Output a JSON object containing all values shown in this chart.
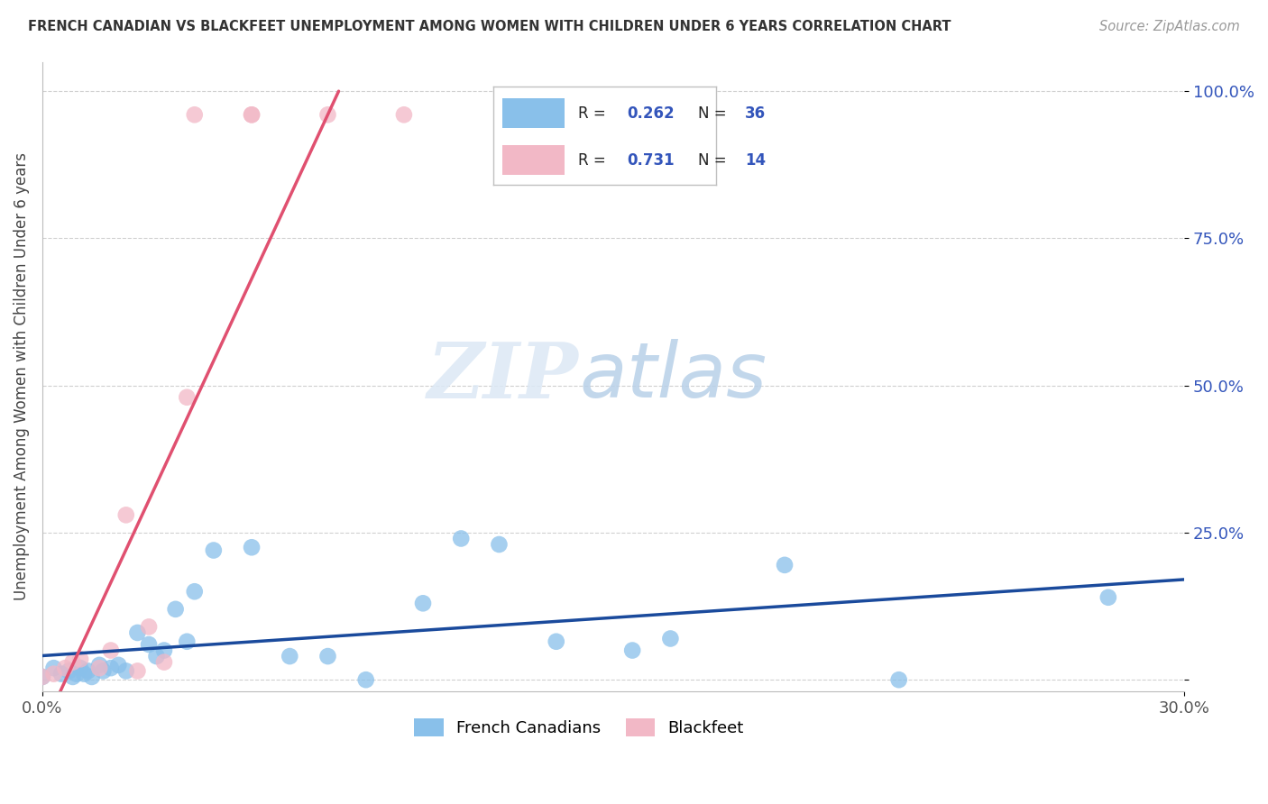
{
  "title": "FRENCH CANADIAN VS BLACKFEET UNEMPLOYMENT AMONG WOMEN WITH CHILDREN UNDER 6 YEARS CORRELATION CHART",
  "source": "Source: ZipAtlas.com",
  "ylabel": "Unemployment Among Women with Children Under 6 years",
  "xlim": [
    0.0,
    0.3
  ],
  "ylim": [
    -0.02,
    1.05
  ],
  "xtick_positions": [
    0.0,
    0.3
  ],
  "xtick_labels": [
    "0.0%",
    "30.0%"
  ],
  "ytick_positions": [
    0.0,
    0.25,
    0.5,
    0.75,
    1.0
  ],
  "ytick_labels": [
    "",
    "25.0%",
    "50.0%",
    "75.0%",
    "100.0%"
  ],
  "french_canadians": {
    "x": [
      0.0,
      0.003,
      0.005,
      0.007,
      0.008,
      0.009,
      0.01,
      0.011,
      0.012,
      0.013,
      0.015,
      0.016,
      0.018,
      0.02,
      0.022,
      0.025,
      0.028,
      0.03,
      0.032,
      0.035,
      0.038,
      0.04,
      0.045,
      0.055,
      0.065,
      0.075,
      0.085,
      0.1,
      0.11,
      0.12,
      0.135,
      0.155,
      0.165,
      0.195,
      0.225,
      0.28
    ],
    "y": [
      0.005,
      0.02,
      0.01,
      0.015,
      0.005,
      0.01,
      0.02,
      0.01,
      0.015,
      0.005,
      0.025,
      0.015,
      0.02,
      0.025,
      0.015,
      0.08,
      0.06,
      0.04,
      0.05,
      0.12,
      0.065,
      0.15,
      0.22,
      0.225,
      0.04,
      0.04,
      0.0,
      0.13,
      0.24,
      0.23,
      0.065,
      0.05,
      0.07,
      0.195,
      0.0,
      0.14
    ],
    "color": "#89c0ea",
    "trend_color": "#1a4a9c",
    "R": 0.262,
    "N": 36
  },
  "blackfeet": {
    "x": [
      0.0,
      0.003,
      0.006,
      0.008,
      0.01,
      0.015,
      0.018,
      0.022,
      0.025,
      0.028,
      0.032,
      0.038,
      0.04,
      0.055
    ],
    "y": [
      0.005,
      0.01,
      0.02,
      0.03,
      0.035,
      0.02,
      0.05,
      0.28,
      0.015,
      0.09,
      0.03,
      0.48,
      0.96,
      0.96
    ],
    "color": "#f2b8c6",
    "trend_color": "#e05070",
    "R": 0.731,
    "N": 14
  },
  "blackfeet_top_outliers": {
    "x": [
      0.055,
      0.075,
      0.095
    ],
    "y": [
      0.96,
      0.96,
      0.96
    ]
  },
  "legend_labels": [
    "French Canadians",
    "Blackfeet"
  ],
  "legend_colors": [
    "#89c0ea",
    "#f2b8c6"
  ],
  "watermark_zip": "ZIP",
  "watermark_atlas": "atlas",
  "background_color": "#ffffff",
  "grid_color": "#d0d0d0",
  "title_color": "#333333",
  "source_color": "#999999",
  "axis_label_color": "#3355bb",
  "legend_r_color": "#3355bb",
  "legend_n_color": "#3355bb",
  "legend_box_edge": "#c0c0c0"
}
